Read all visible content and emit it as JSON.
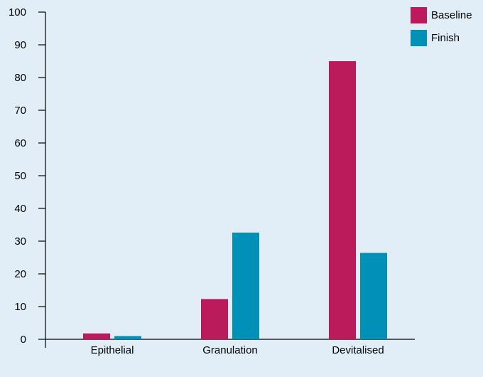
{
  "chart_data": {
    "type": "bar",
    "title": "",
    "xlabel": "",
    "ylabel": "",
    "categories": [
      "Epithelial",
      "Granulation",
      "Devitalised"
    ],
    "series": [
      {
        "name": "Baseline",
        "color": "#bb1a5b",
        "values": [
          1.8,
          12.3,
          85.0
        ]
      },
      {
        "name": "Finish",
        "color": "#0090b8",
        "values": [
          1.0,
          32.6,
          26.4
        ]
      }
    ],
    "ylim": [
      0,
      100
    ],
    "yticks": [
      0,
      10,
      20,
      30,
      40,
      50,
      60,
      70,
      80,
      90,
      100
    ],
    "grid": false,
    "legend": "top-right",
    "colors": {
      "background": "#e2eef7",
      "axis": "#000000"
    }
  }
}
